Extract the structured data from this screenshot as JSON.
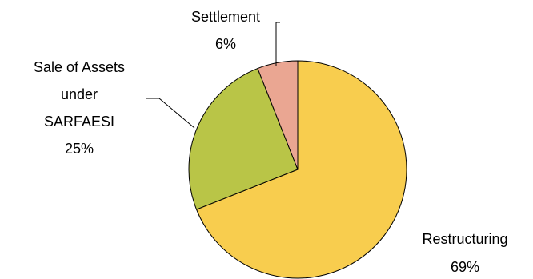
{
  "chart_data": {
    "type": "pie",
    "slices": [
      {
        "label": "Restructuring",
        "value": 69,
        "pct_label": "69%",
        "color": "#f8cd4e"
      },
      {
        "label": "Sale of Assets under SARFAESI",
        "label_lines": [
          "Sale of Assets",
          "under",
          "SARFAESI"
        ],
        "value": 25,
        "pct_label": "25%",
        "color": "#b9c547"
      },
      {
        "label": "Settlement",
        "value": 6,
        "pct_label": "6%",
        "color": "#eaa692"
      }
    ]
  }
}
